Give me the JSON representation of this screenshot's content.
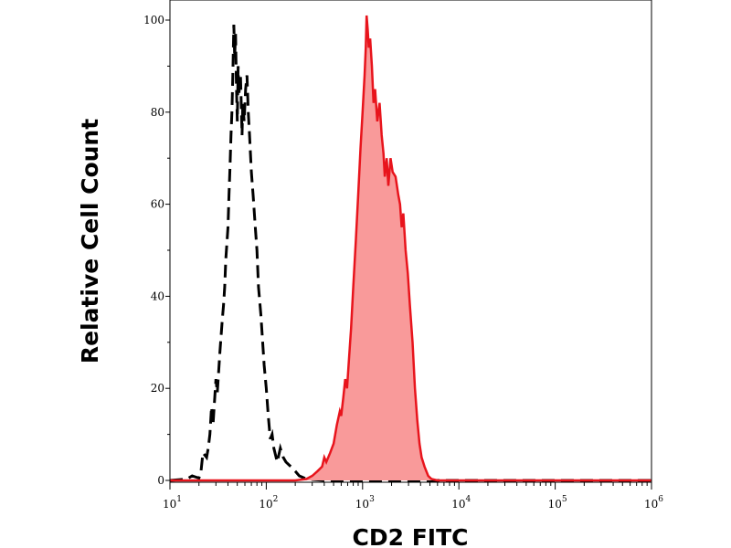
{
  "chart_data": {
    "type": "area",
    "title": "",
    "xlabel": "CD2 FITC",
    "ylabel": "Relative Cell Count",
    "xscale": "log",
    "xlim": [
      10,
      1000000
    ],
    "ylim": [
      0,
      100
    ],
    "xticks": [
      {
        "value": 10,
        "base": "10",
        "exp": "1"
      },
      {
        "value": 100,
        "base": "10",
        "exp": "2"
      },
      {
        "value": 1000,
        "base": "10",
        "exp": "3"
      },
      {
        "value": 10000,
        "base": "10",
        "exp": "4"
      },
      {
        "value": 100000,
        "base": "10",
        "exp": "5"
      },
      {
        "value": 1000000,
        "base": "10",
        "exp": "6"
      }
    ],
    "yticks": [
      {
        "value": 0,
        "label": "0"
      },
      {
        "value": 20,
        "label": "20"
      },
      {
        "value": 40,
        "label": "40"
      },
      {
        "value": 60,
        "label": "60"
      },
      {
        "value": 80,
        "label": "80"
      },
      {
        "value": 100,
        "label": "100"
      }
    ],
    "grid": false,
    "legend": "none",
    "series": [
      {
        "style": "dashed-line",
        "color": "#000000",
        "points": [
          [
            10,
            0
          ],
          [
            15,
            0.3
          ],
          [
            17,
            1
          ],
          [
            20,
            0.5
          ],
          [
            21,
            2
          ],
          [
            22,
            6
          ],
          [
            24,
            5
          ],
          [
            25,
            7
          ],
          [
            26,
            10
          ],
          [
            27,
            16
          ],
          [
            28,
            12
          ],
          [
            29,
            17
          ],
          [
            30,
            22
          ],
          [
            31,
            19
          ],
          [
            33,
            28
          ],
          [
            35,
            35
          ],
          [
            36,
            38
          ],
          [
            37,
            42
          ],
          [
            38,
            48
          ],
          [
            40,
            55
          ],
          [
            41,
            62
          ],
          [
            42,
            68
          ],
          [
            43,
            75
          ],
          [
            44,
            80
          ],
          [
            45,
            88
          ],
          [
            46,
            99
          ],
          [
            47,
            92
          ],
          [
            48,
            97
          ],
          [
            49,
            86
          ],
          [
            50,
            78
          ],
          [
            51,
            90
          ],
          [
            52,
            84
          ],
          [
            54,
            88
          ],
          [
            56,
            75
          ],
          [
            57,
            82
          ],
          [
            59,
            78
          ],
          [
            61,
            85
          ],
          [
            63,
            88
          ],
          [
            65,
            80
          ],
          [
            67,
            75
          ],
          [
            70,
            67
          ],
          [
            73,
            62
          ],
          [
            77,
            55
          ],
          [
            80,
            50
          ],
          [
            83,
            42
          ],
          [
            88,
            36
          ],
          [
            95,
            25
          ],
          [
            100,
            20
          ],
          [
            105,
            14
          ],
          [
            110,
            9
          ],
          [
            115,
            10
          ],
          [
            120,
            7
          ],
          [
            130,
            4
          ],
          [
            140,
            7
          ],
          [
            150,
            5
          ],
          [
            160,
            4
          ],
          [
            180,
            3
          ],
          [
            200,
            2
          ],
          [
            220,
            1
          ],
          [
            250,
            0.5
          ],
          [
            300,
            0.2
          ],
          [
            400,
            0
          ],
          [
            1000000,
            0
          ]
        ]
      },
      {
        "style": "filled-area",
        "color": "#e8141c",
        "fill": "#f99a9a",
        "points": [
          [
            10,
            0
          ],
          [
            100,
            0
          ],
          [
            200,
            0
          ],
          [
            260,
            0.3
          ],
          [
            300,
            1
          ],
          [
            340,
            2
          ],
          [
            380,
            3
          ],
          [
            400,
            5
          ],
          [
            420,
            4
          ],
          [
            460,
            6
          ],
          [
            500,
            8
          ],
          [
            540,
            12
          ],
          [
            580,
            15
          ],
          [
            600,
            14
          ],
          [
            630,
            18
          ],
          [
            660,
            22
          ],
          [
            690,
            20
          ],
          [
            720,
            26
          ],
          [
            760,
            33
          ],
          [
            800,
            42
          ],
          [
            850,
            52
          ],
          [
            900,
            62
          ],
          [
            950,
            72
          ],
          [
            1000,
            80
          ],
          [
            1050,
            88
          ],
          [
            1080,
            94
          ],
          [
            1100,
            101
          ],
          [
            1130,
            98
          ],
          [
            1160,
            94
          ],
          [
            1200,
            96
          ],
          [
            1250,
            90
          ],
          [
            1300,
            82
          ],
          [
            1350,
            85
          ],
          [
            1420,
            78
          ],
          [
            1500,
            82
          ],
          [
            1580,
            75
          ],
          [
            1650,
            71
          ],
          [
            1700,
            66
          ],
          [
            1780,
            70
          ],
          [
            1850,
            64
          ],
          [
            1950,
            70
          ],
          [
            2050,
            67
          ],
          [
            2200,
            66
          ],
          [
            2350,
            62
          ],
          [
            2450,
            60
          ],
          [
            2550,
            55
          ],
          [
            2650,
            58
          ],
          [
            2800,
            50
          ],
          [
            2950,
            45
          ],
          [
            3100,
            38
          ],
          [
            3300,
            30
          ],
          [
            3500,
            20
          ],
          [
            3700,
            13
          ],
          [
            3900,
            8
          ],
          [
            4100,
            5
          ],
          [
            4400,
            3
          ],
          [
            4800,
            1
          ],
          [
            5200,
            0.3
          ],
          [
            6000,
            0
          ],
          [
            1000000,
            0
          ]
        ]
      }
    ]
  }
}
